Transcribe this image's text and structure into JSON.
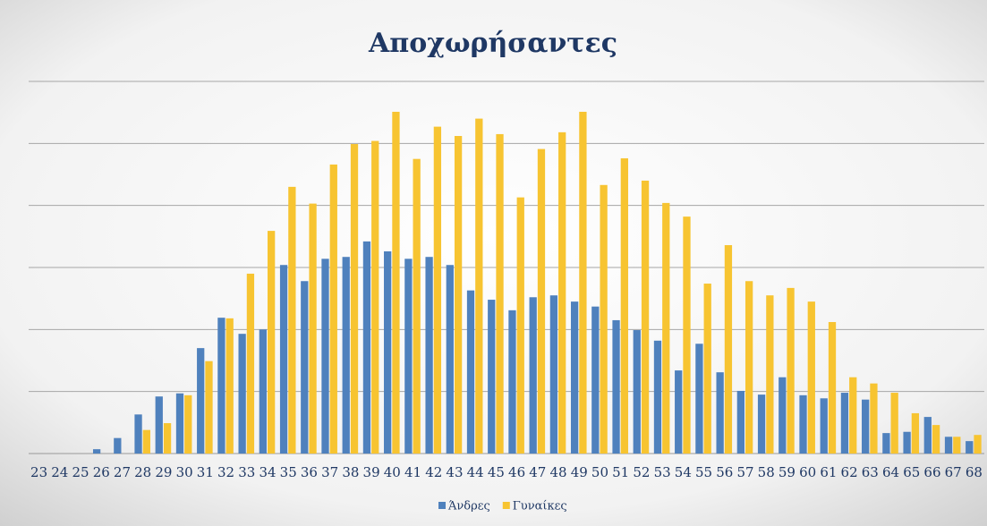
{
  "chart_data": {
    "type": "bar",
    "title": "Αποχωρήσαντες",
    "categories": [
      "23",
      "24",
      "25",
      "26",
      "27",
      "28",
      "29",
      "30",
      "31",
      "32",
      "33",
      "34",
      "35",
      "36",
      "37",
      "38",
      "39",
      "40",
      "41",
      "42",
      "43",
      "44",
      "45",
      "46",
      "47",
      "48",
      "49",
      "50",
      "51",
      "52",
      "53",
      "54",
      "55",
      "56",
      "57",
      "58",
      "59",
      "60",
      "61",
      "62",
      "63",
      "64",
      "65",
      "66",
      "67",
      "68"
    ],
    "series": [
      {
        "name": "Άνδρες",
        "color": "#4f81bd",
        "values": [
          0,
          0,
          0,
          0.07,
          0.25,
          0.63,
          0.92,
          0.97,
          1.7,
          2.19,
          1.93,
          2.0,
          3.04,
          2.78,
          3.14,
          3.17,
          3.42,
          3.26,
          3.14,
          3.17,
          3.04,
          2.63,
          2.48,
          2.31,
          2.52,
          2.55,
          2.45,
          2.37,
          2.15,
          1.99,
          1.82,
          1.34,
          1.77,
          1.31,
          1.01,
          0.95,
          1.23,
          0.94,
          0.89,
          0.98,
          0.87,
          0.33,
          0.35,
          0.59,
          0.27,
          0.2
        ]
      },
      {
        "name": "Γυναίκες",
        "color": "#f7c431",
        "values": [
          0,
          0,
          0,
          0,
          0,
          0.38,
          0.49,
          0.94,
          1.49,
          2.18,
          2.9,
          3.59,
          4.3,
          4.03,
          4.66,
          4.99,
          5.04,
          5.51,
          4.75,
          5.27,
          5.12,
          5.4,
          5.15,
          4.13,
          4.91,
          5.18,
          5.51,
          4.33,
          4.76,
          4.4,
          4.04,
          3.82,
          2.74,
          3.36,
          2.78,
          2.55,
          2.67,
          2.45,
          2.12,
          1.23,
          1.13,
          0.98,
          0.65,
          0.46,
          0.27,
          0.3
        ]
      }
    ],
    "ylim": [
      0,
      6
    ],
    "yticks": [
      0,
      1,
      2,
      3,
      4,
      5,
      6
    ],
    "grid": true,
    "legend": "bottom"
  }
}
